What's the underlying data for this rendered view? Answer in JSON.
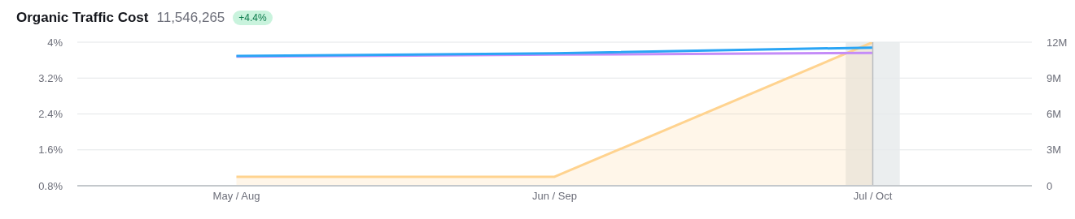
{
  "chart_data": {
    "type": "line",
    "title": "Organic Traffic Cost",
    "subtitle": "11,546,265",
    "annotations": [
      "+4.4%"
    ],
    "categories": [
      "May / Aug",
      "Jun / Sep",
      "Jul / Oct"
    ],
    "series": [
      {
        "type": "area",
        "color": "#ffd38f",
        "values": [
          1.0,
          1.0,
          4.0
        ]
      },
      {
        "axis": "y2",
        "color": "#c48cf8",
        "values": [
          10800000,
          10960000,
          11100000
        ]
      },
      {
        "axis": "y2",
        "color": "#2aa5f5",
        "values": [
          10850000,
          11070000,
          11550000
        ]
      }
    ],
    "ylim": [
      0.8,
      4
    ],
    "yticks": [
      {
        "value": 0.8,
        "label": "0.8%"
      },
      {
        "value": 1.6,
        "label": "1.6%"
      },
      {
        "value": 2.4,
        "label": "2.4%"
      },
      {
        "value": 3.2,
        "label": "3.2%"
      },
      {
        "value": 4,
        "label": "4%"
      }
    ],
    "y2lim": [
      0,
      12000000
    ],
    "y2ticks": [
      {
        "value": 0,
        "label": "0"
      },
      {
        "value": 3000000,
        "label": "3M"
      },
      {
        "value": 6000000,
        "label": "6M"
      },
      {
        "value": 9000000,
        "label": "9M"
      },
      {
        "value": 12000000,
        "label": "12M"
      }
    ],
    "bands": [
      {
        "axis": "x",
        "from": "Jul / Oct",
        "to": "Jul / Oct",
        "color": "#e6eaeb"
      }
    ],
    "ref_lines": [
      {
        "axis": "x",
        "value": "Jul / Oct",
        "color": "#b8bcc0"
      }
    ],
    "grid": "y",
    "legend": false,
    "marker": "none",
    "line_style": "solid"
  }
}
